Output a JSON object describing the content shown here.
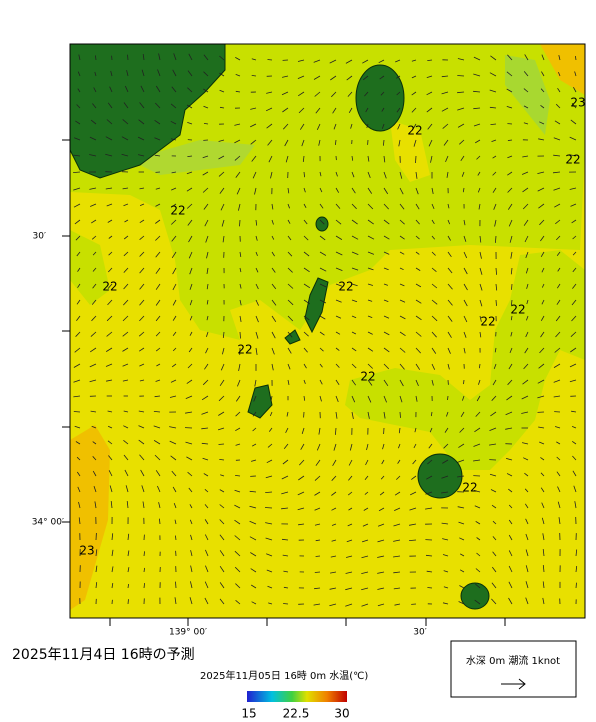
{
  "map": {
    "title": "2025年11月4日 16時の予測",
    "subtitle": "2025年11月05日 16時 0m 水温(℃)",
    "y_axis_labels": [
      "30′",
      "34° 00′"
    ],
    "x_axis_labels": [
      "139° 00′",
      "30′"
    ],
    "contour_labels": [
      "22",
      "22",
      "22",
      "22",
      "22",
      "22",
      "22",
      "22",
      "22",
      "22",
      "23",
      "23"
    ],
    "colorbar_labels": [
      "15",
      "22.5",
      "30"
    ],
    "legend": "水深 0m 潮流 1knot"
  }
}
